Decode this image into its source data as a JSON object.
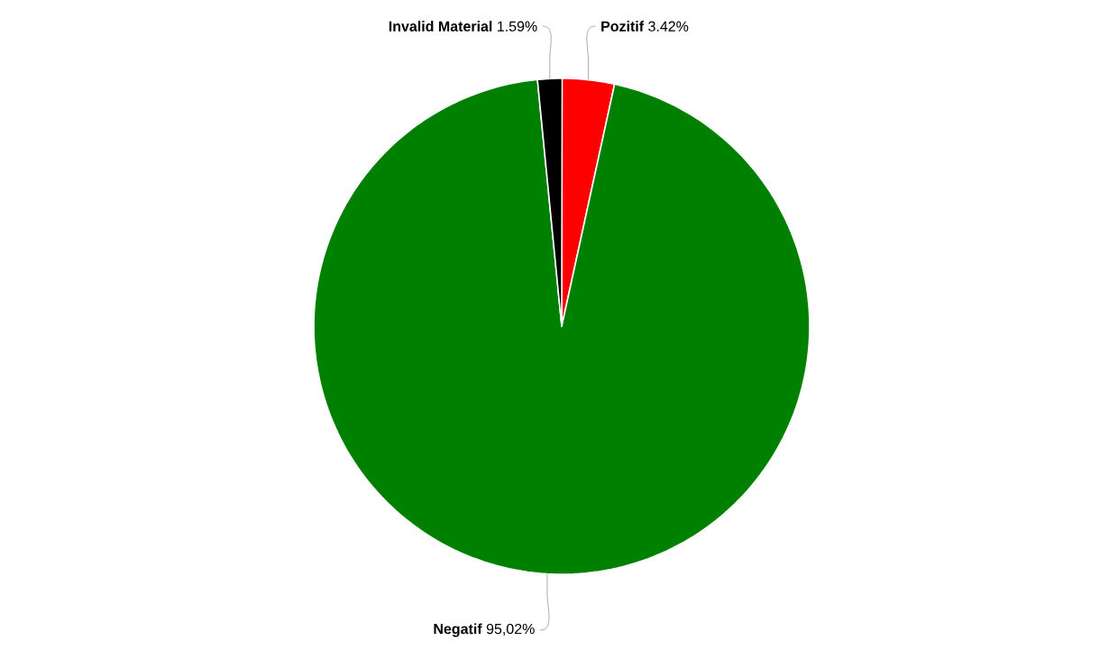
{
  "chart_data": {
    "type": "pie",
    "categories": [
      "Pozitif",
      "Negatif",
      "Invalid Material"
    ],
    "values": [
      3.42,
      95.02,
      1.59
    ],
    "colors": [
      "#ff0000",
      "#008000",
      "#000000"
    ],
    "value_labels": [
      "3.42%",
      "95,02%",
      "1.59%"
    ]
  }
}
